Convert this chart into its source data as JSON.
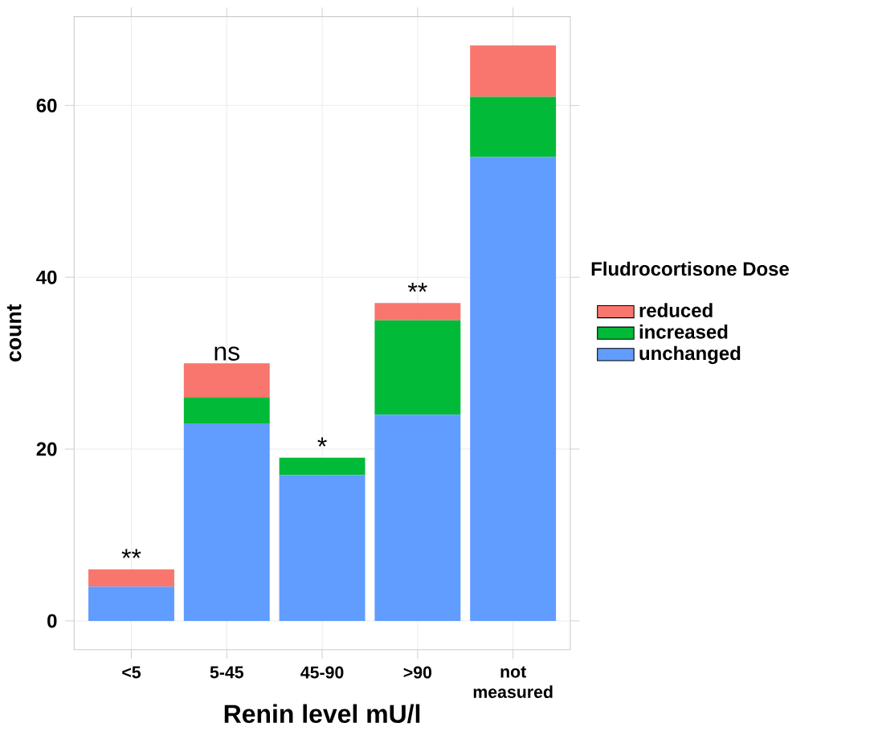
{
  "chart_data": {
    "type": "bar",
    "stacked": true,
    "xlabel": "Renin level mU/l",
    "ylabel": "count",
    "legend_title": "Fludrocortisone Dose",
    "categories": [
      "<5",
      "5-45",
      "45-90",
      ">90",
      "not measured"
    ],
    "series": [
      {
        "name": "unchanged",
        "color": "#619cff",
        "values": [
          4,
          23,
          17,
          24,
          54
        ]
      },
      {
        "name": "increased",
        "color": "#00ba38",
        "values": [
          0,
          3,
          2,
          11,
          7
        ]
      },
      {
        "name": "reduced",
        "color": "#f8766d",
        "values": [
          2,
          4,
          0,
          2,
          6
        ]
      }
    ],
    "ylim": [
      -3.35,
      70.35
    ],
    "yticks": [
      0,
      20,
      40,
      60
    ],
    "grid": true,
    "legend": "right",
    "annotations": [
      {
        "text": "**",
        "x": "<5",
        "y": 6
      },
      {
        "text": "ns",
        "x": "5-45",
        "y": 30
      },
      {
        "text": "*",
        "x": "45-90",
        "y": 19
      },
      {
        "text": "**",
        "x": ">90",
        "y": 37
      }
    ]
  }
}
